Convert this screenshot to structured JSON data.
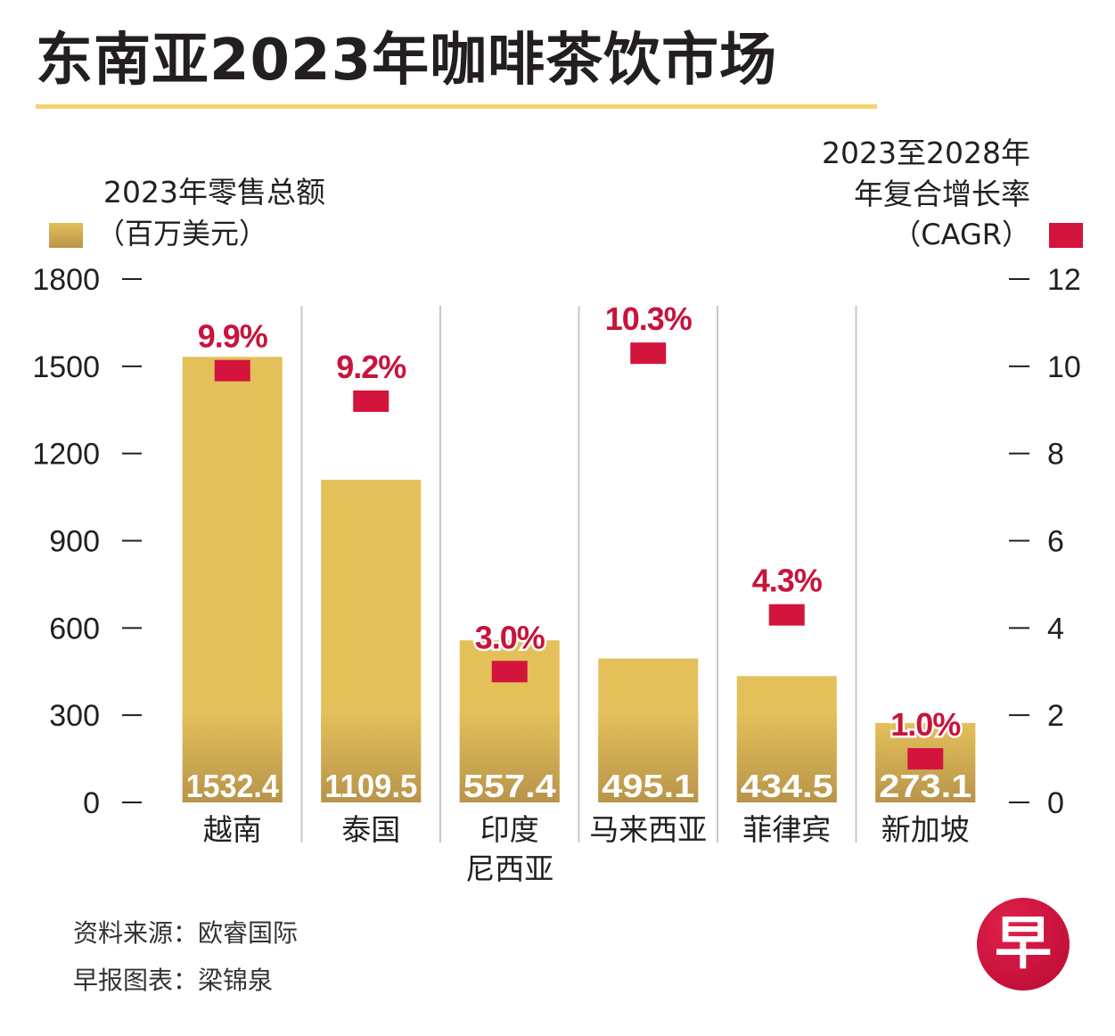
{
  "title": "东南亚2023年咖啡茶饮市场",
  "legend_left": {
    "title": "2023年零售总额",
    "unit": "（百万美元）"
  },
  "legend_right": {
    "line1": "2023至2028年",
    "line2": "年复合增长率",
    "line3": "（CAGR）"
  },
  "colors": {
    "bar_top": "#e3c05a",
    "bar_bottom": "#b8944a",
    "cagr": "#d3143c",
    "cagr_text": "#c8143c",
    "divider": "#c8c8c8",
    "title_rule": "#f3d36a"
  },
  "chart_data": {
    "type": "bar",
    "title": "东南亚2023年咖啡茶饮市场",
    "categories": [
      "越南",
      "泰国",
      "印度\n尼西亚",
      "马来西亚",
      "菲律宾",
      "新加坡"
    ],
    "category_lines": [
      [
        "越南"
      ],
      [
        "泰国"
      ],
      [
        "印度",
        "尼西亚"
      ],
      [
        "马来西亚"
      ],
      [
        "菲律宾"
      ],
      [
        "新加坡"
      ]
    ],
    "series": [
      {
        "name": "2023年零售总额（百万美元）",
        "axis": "left",
        "type": "bar",
        "values": [
          1532.4,
          1109.5,
          557.4,
          495.1,
          434.5,
          273.1
        ],
        "labels": [
          "1532.4",
          "1109.5",
          "557.4",
          "495.1",
          "434.5",
          "273.1"
        ]
      },
      {
        "name": "2023至2028年年复合增长率（CAGR）",
        "axis": "right",
        "type": "marker",
        "values": [
          9.9,
          9.2,
          3.0,
          10.3,
          4.3,
          1.0
        ],
        "labels": [
          "9.9%",
          "9.2%",
          "3.0%",
          "10.3%",
          "4.3%",
          "1.0%"
        ]
      }
    ],
    "left_axis": {
      "ylim": [
        0,
        1800
      ],
      "ticks": [
        "0",
        "300",
        "600",
        "900",
        "1200",
        "1500",
        "1800"
      ]
    },
    "right_axis": {
      "ylim": [
        0,
        12
      ],
      "ticks": [
        "0",
        "2",
        "4",
        "6",
        "8",
        "10",
        "12"
      ]
    },
    "xlabel": "",
    "ylabel": "2023年零售总额（百万美元）",
    "y2label": "2023至2028年年复合增长率（CAGR）",
    "grid": false,
    "legend": "top"
  },
  "footer": {
    "source": "资料来源：欧睿国际",
    "credit": "早报图表：梁锦泉"
  },
  "logo": {
    "glyph": "早"
  }
}
